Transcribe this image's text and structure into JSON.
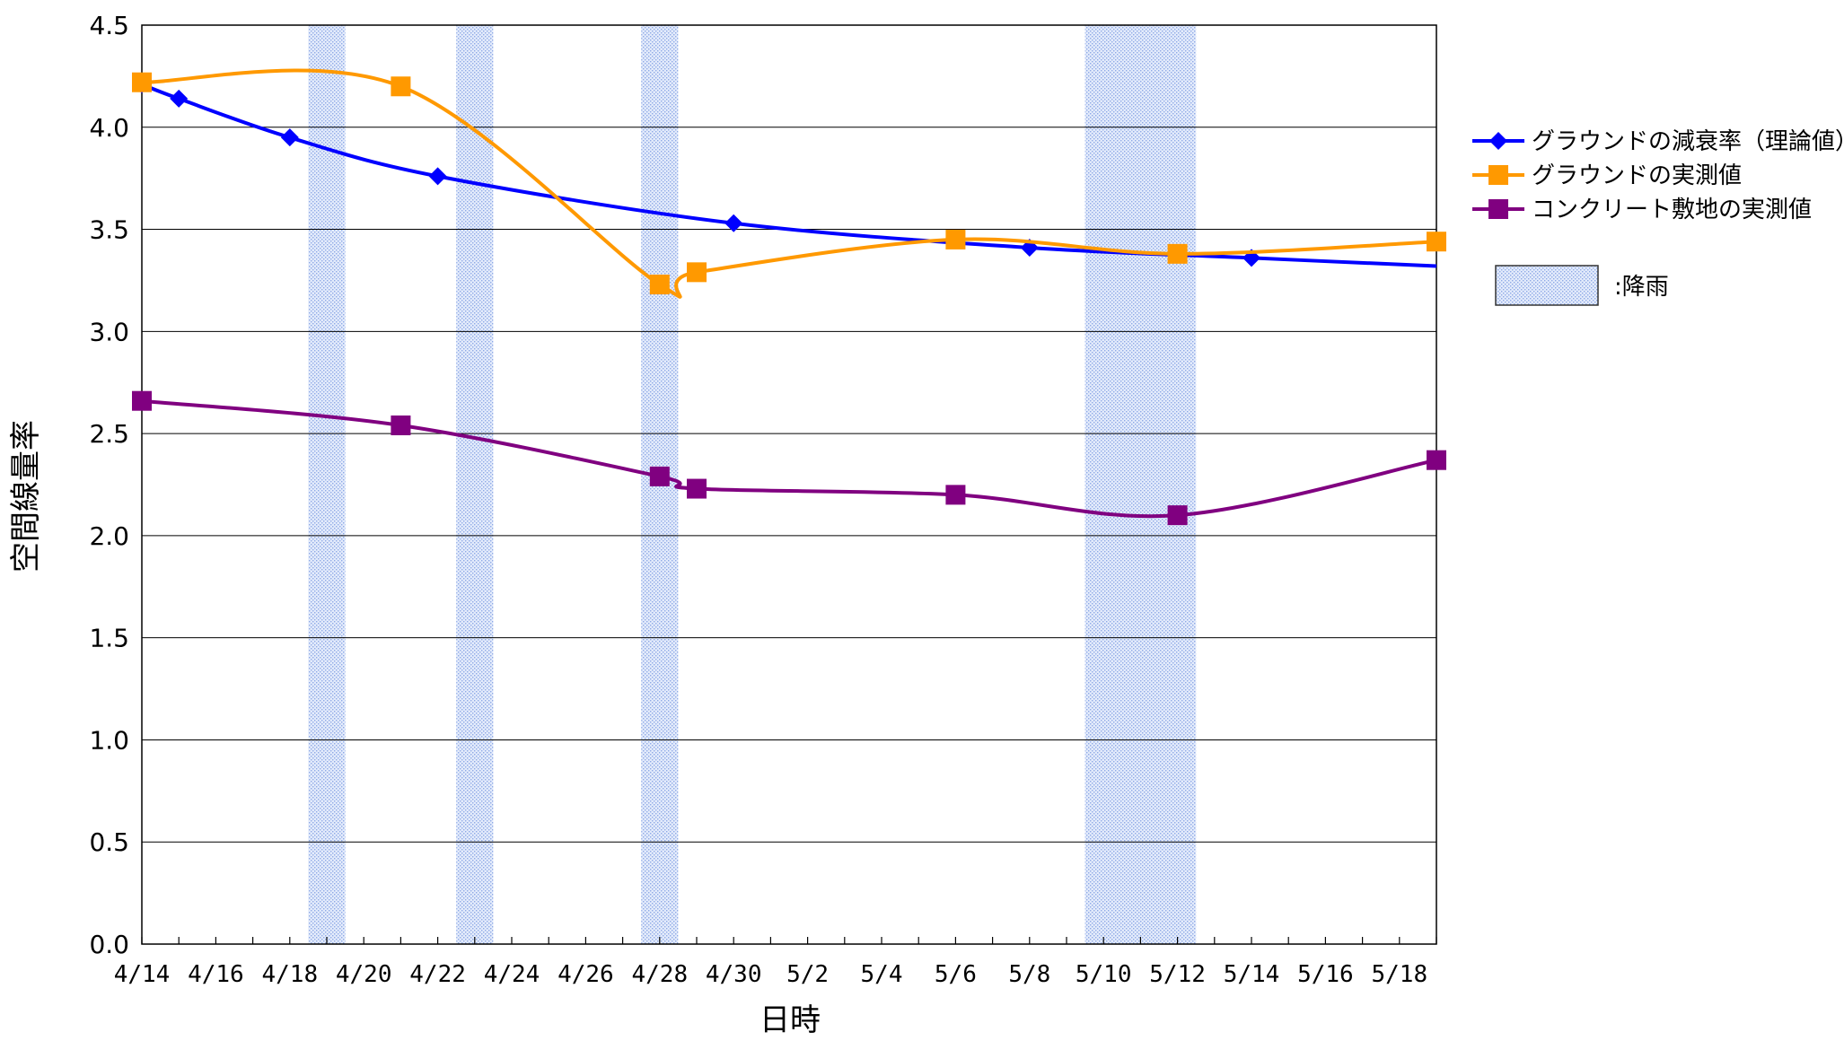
{
  "chart_data": {
    "type": "line",
    "title": "",
    "xlabel": "日時",
    "ylabel": "空間線量率",
    "ylim": [
      0,
      4.5
    ],
    "yticks": [
      "0.0",
      "0.5",
      "1.0",
      "1.5",
      "2.0",
      "2.5",
      "3.0",
      "3.5",
      "4.0",
      "4.5"
    ],
    "xlim": [
      "4/14",
      "5/19"
    ],
    "xticks": [
      "4/14",
      "4/16",
      "4/18",
      "4/20",
      "4/22",
      "4/24",
      "4/26",
      "4/28",
      "4/30",
      "5/2",
      "5/4",
      "5/6",
      "5/8",
      "5/10",
      "5/12",
      "5/14",
      "5/16",
      "5/18"
    ],
    "grid": "horizontal",
    "legend_position": "right",
    "rain_label": ":降雨",
    "rain_periods": [
      {
        "start": "4/18.5",
        "end": "4/19.5"
      },
      {
        "start": "4/22.5",
        "end": "4/23.5"
      },
      {
        "start": "4/27.5",
        "end": "4/28.5"
      },
      {
        "start": "5/9.5",
        "end": "5/12.5"
      }
    ],
    "series": [
      {
        "name": "グラウンドの減衰率（理論値）",
        "color": "#0000ff",
        "marker": "diamond",
        "x": [
          "4/14",
          "4/15",
          "4/18",
          "4/22",
          "4/30",
          "5/8",
          "5/14"
        ],
        "values": [
          4.21,
          4.14,
          3.95,
          3.76,
          3.53,
          3.41,
          3.36
        ],
        "line_end": {
          "x": "5/19",
          "value": 3.32
        }
      },
      {
        "name": "グラウンドの実測値",
        "color": "#ff9900",
        "marker": "square",
        "x": [
          "4/14",
          "4/21",
          "4/28",
          "4/29",
          "5/6",
          "5/12",
          "5/19"
        ],
        "values": [
          4.22,
          4.2,
          3.23,
          3.29,
          3.45,
          3.38,
          3.44
        ]
      },
      {
        "name": "コンクリート敷地の実測値",
        "color": "#800080",
        "marker": "square",
        "x": [
          "4/14",
          "4/21",
          "4/28",
          "4/29",
          "5/6",
          "5/12",
          "5/19"
        ],
        "values": [
          2.66,
          2.54,
          2.29,
          2.23,
          2.2,
          2.1,
          2.37
        ]
      }
    ]
  }
}
